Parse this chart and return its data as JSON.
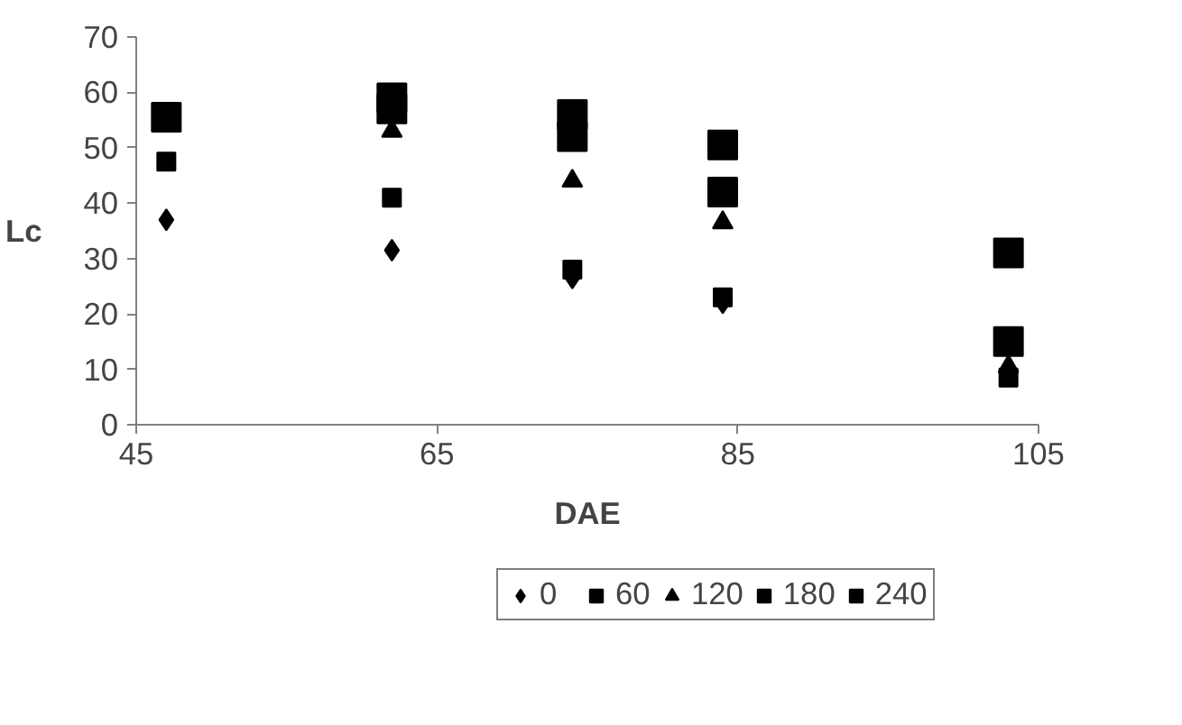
{
  "chart_data": {
    "type": "scatter",
    "xlabel": "DAE",
    "ylabel": "Lc",
    "x": [
      47,
      62,
      74,
      84,
      103
    ],
    "xlim": [
      45,
      105
    ],
    "xticks": [
      45,
      65,
      85,
      105
    ],
    "ylim": [
      0,
      70
    ],
    "yticks": [
      0,
      10,
      20,
      30,
      40,
      50,
      60,
      70
    ],
    "grid": false,
    "legend": "bottom",
    "series": [
      {
        "name": "0",
        "color": "#000000",
        "marker": "diamond",
        "values": [
          37,
          31.5,
          26.5,
          22,
          null
        ]
      },
      {
        "name": "60",
        "color": "#000000",
        "marker": "square",
        "values": [
          47.5,
          41,
          28,
          23,
          8.5
        ]
      },
      {
        "name": "120",
        "color": "#000000",
        "marker": "triangle",
        "values": [
          null,
          53,
          44,
          36.5,
          10.5
        ]
      },
      {
        "name": "180",
        "color": "#000000",
        "marker": "square",
        "values": [
          null,
          57,
          52,
          42,
          15
        ]
      },
      {
        "name": "240",
        "color": "#000000",
        "marker": "square",
        "values": [
          55.5,
          59,
          56,
          50.5,
          31
        ]
      }
    ]
  }
}
